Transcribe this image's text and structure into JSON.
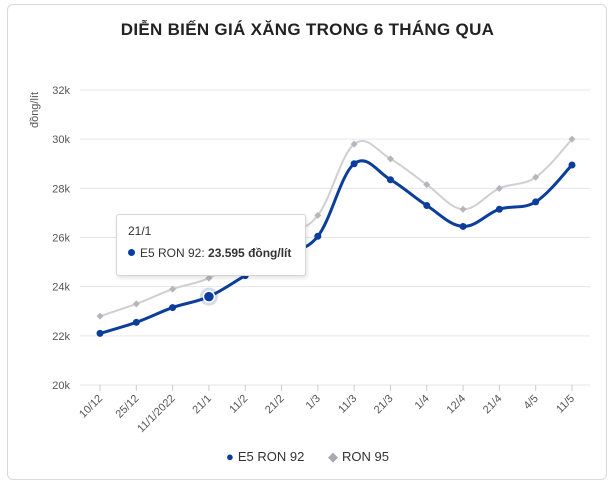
{
  "chart_data": {
    "type": "line",
    "title": "DIỄN BIẾN GIÁ XĂNG TRONG 6 THÁNG QUA",
    "ylabel": "đồng/lít",
    "xlabel": "",
    "ylim": [
      20000,
      32000
    ],
    "yticks": [
      20000,
      22000,
      24000,
      26000,
      28000,
      30000,
      32000
    ],
    "ytick_labels": [
      "20k",
      "22k",
      "24k",
      "26k",
      "28k",
      "30k",
      "32k"
    ],
    "categories": [
      "10/12",
      "25/12",
      "11/1/2022",
      "21/1",
      "11/2",
      "21/2",
      "1/3",
      "11/3",
      "21/3",
      "1/4",
      "12/4",
      "21/4",
      "4/5",
      "11/5"
    ],
    "series": [
      {
        "name": "E5 RON 92",
        "color": "#0b3d9c",
        "values": [
          22100,
          22550,
          23150,
          23595,
          24450,
          25300,
          26050,
          29000,
          28350,
          27300,
          26450,
          27150,
          27450,
          28950
        ]
      },
      {
        "name": "RON 95",
        "color": "#cfcfd4",
        "values": [
          22800,
          23300,
          23900,
          24350,
          25250,
          26050,
          26900,
          29800,
          29200,
          28150,
          27150,
          28000,
          28450,
          30000
        ]
      }
    ],
    "grid": true,
    "legend_position": "bottom-center",
    "tooltip": {
      "header": "21/1",
      "series": "E5 RON 92",
      "value_text": "23.595 đồng/lít"
    }
  }
}
